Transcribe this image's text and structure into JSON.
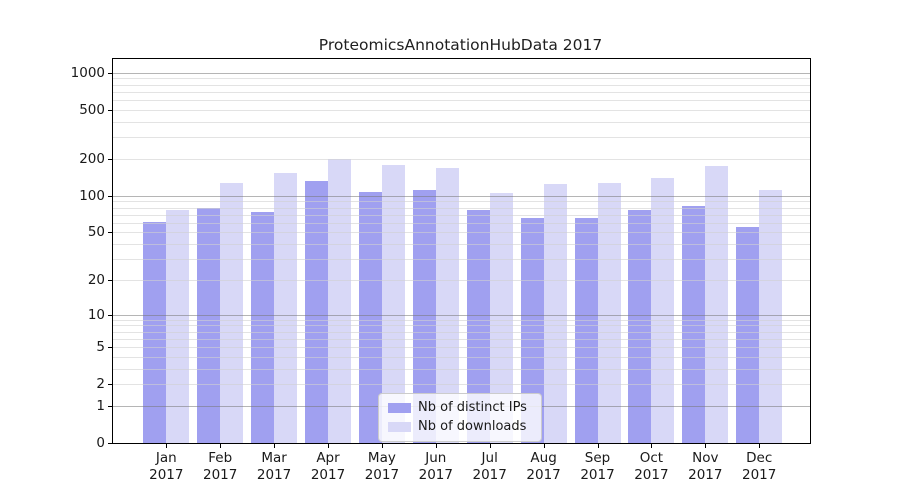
{
  "chart_data": {
    "type": "bar",
    "title": "ProteomicsAnnotationHubData 2017",
    "categories": [
      "Jan",
      "Feb",
      "Mar",
      "Apr",
      "May",
      "Jun",
      "Jul",
      "Aug",
      "Sep",
      "Oct",
      "Nov",
      "Dec"
    ],
    "year_label": "2017",
    "series": [
      {
        "name": "Nb of distinct IPs",
        "color": "#a0a0f0",
        "values": [
          61,
          80,
          74,
          131,
          107,
          111,
          76,
          66,
          66,
          76,
          83,
          55
        ]
      },
      {
        "name": "Nb of downloads",
        "color": "#d8d8f7",
        "values": [
          76,
          126,
          153,
          199,
          177,
          168,
          106,
          124,
          126,
          140,
          175,
          111
        ]
      }
    ],
    "y_scale": "log1p",
    "y_ticks": [
      0,
      1,
      2,
      5,
      10,
      20,
      50,
      100,
      200,
      500,
      1000
    ],
    "y_major_gridlines": [
      1,
      10,
      100,
      1000
    ],
    "y_minor_gridlines": [
      2,
      3,
      4,
      5,
      6,
      7,
      8,
      9,
      20,
      30,
      40,
      50,
      60,
      70,
      80,
      90,
      200,
      300,
      400,
      500,
      600,
      700,
      800,
      900
    ],
    "ylim": [
      0,
      1290
    ],
    "xlabel": "",
    "ylabel": "",
    "grid": true,
    "legend_position": "lower center"
  },
  "colors": {
    "background": "#ffffff",
    "axis_frame": "#000000",
    "grid_major": "#ababab",
    "grid_minor": "#e5e5e5",
    "text": "#1a1a1a"
  }
}
